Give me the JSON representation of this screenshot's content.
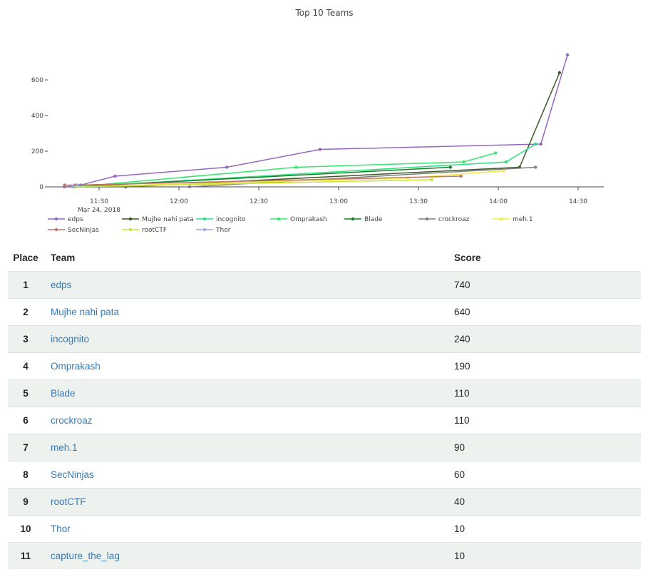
{
  "chart_data": {
    "type": "line",
    "title": "Top 10 Teams",
    "x_ticks": [
      "11:30",
      "12:00",
      "12:30",
      "13:00",
      "13:30",
      "14:00",
      "14:30"
    ],
    "x_tick_minutes": [
      690,
      720,
      750,
      780,
      810,
      840,
      870
    ],
    "x_date_label": "Mar 24, 2018",
    "xlim_minutes": [
      670,
      879
    ],
    "y_ticks": [
      0,
      200,
      400,
      600
    ],
    "ylim": [
      0,
      740
    ],
    "grid": false,
    "legend_position": "bottom",
    "series": [
      {
        "name": "edps",
        "color": "#9467bd",
        "points": [
          [
            677,
            0
          ],
          [
            683,
            10
          ],
          [
            696,
            60
          ],
          [
            738,
            110
          ],
          [
            773,
            210
          ],
          [
            856,
            240
          ],
          [
            866,
            740
          ]
        ]
      },
      {
        "name": "Mujhe nahi pata",
        "color": "#3d5a2a",
        "points": [
          [
            680,
            0
          ],
          [
            700,
            0
          ],
          [
            848,
            110
          ],
          [
            863,
            640
          ]
        ]
      },
      {
        "name": "incognito",
        "color": "#2ee083",
        "points": [
          [
            681,
            0
          ],
          [
            843,
            140
          ],
          [
            854,
            240
          ]
        ]
      },
      {
        "name": "Omprakash",
        "color": "#35e86d",
        "points": [
          [
            681,
            0
          ],
          [
            764,
            110
          ],
          [
            827,
            140
          ],
          [
            839,
            190
          ]
        ]
      },
      {
        "name": "Blade",
        "color": "#1a7f25",
        "points": [
          [
            680,
            0
          ],
          [
            822,
            110
          ]
        ]
      },
      {
        "name": "crockroaz",
        "color": "#7f7f7f",
        "points": [
          [
            680,
            0
          ],
          [
            724,
            0
          ],
          [
            854,
            110
          ]
        ]
      },
      {
        "name": "meh.1",
        "color": "#f2e93e",
        "points": [
          [
            680,
            0
          ],
          [
            806,
            50
          ],
          [
            842,
            90
          ]
        ]
      },
      {
        "name": "SecNinjas",
        "color": "#c0766a",
        "points": [
          [
            677,
            10
          ],
          [
            681,
            10
          ],
          [
            826,
            60
          ]
        ]
      },
      {
        "name": "rootCTF",
        "color": "#cde33a",
        "points": [
          [
            680,
            0
          ],
          [
            815,
            40
          ]
        ]
      },
      {
        "name": "Thor",
        "color": "#9aa6dc",
        "points": [
          [
            680,
            0
          ],
          [
            682,
            10
          ]
        ]
      }
    ]
  },
  "table": {
    "headers": {
      "place": "Place",
      "team": "Team",
      "score": "Score"
    },
    "rows": [
      {
        "place": "1",
        "team": "edps",
        "score": "740"
      },
      {
        "place": "2",
        "team": "Mujhe nahi pata",
        "score": "640"
      },
      {
        "place": "3",
        "team": "incognito",
        "score": "240"
      },
      {
        "place": "4",
        "team": "Omprakash",
        "score": "190"
      },
      {
        "place": "5",
        "team": "Blade",
        "score": "110"
      },
      {
        "place": "6",
        "team": "crockroaz",
        "score": "110"
      },
      {
        "place": "7",
        "team": "meh.1",
        "score": "90"
      },
      {
        "place": "8",
        "team": "SecNinjas",
        "score": "60"
      },
      {
        "place": "9",
        "team": "rootCTF",
        "score": "40"
      },
      {
        "place": "10",
        "team": "Thor",
        "score": "10"
      },
      {
        "place": "11",
        "team": "capture_the_lag",
        "score": "10"
      }
    ]
  }
}
